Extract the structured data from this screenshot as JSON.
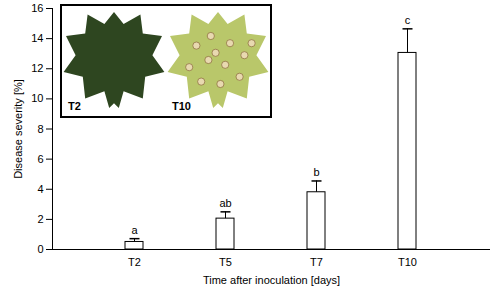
{
  "chart_data": {
    "type": "bar",
    "categories": [
      "T2",
      "T5",
      "T7",
      "T10"
    ],
    "values": [
      0.5,
      2.05,
      3.8,
      13.05
    ],
    "errors": [
      0.22,
      0.45,
      0.75,
      1.6
    ],
    "annotations": [
      "a",
      "ab",
      "b",
      "c"
    ],
    "x_label": "Time after inoculation [days]",
    "y_label": "Disease severity [%]",
    "ylim": [
      0,
      16
    ],
    "yticks": [
      0,
      2,
      4,
      6,
      8,
      10,
      12,
      14,
      16
    ],
    "color": "#ffffff",
    "grid": false,
    "inset_labels": [
      "T2",
      "T10"
    ]
  }
}
